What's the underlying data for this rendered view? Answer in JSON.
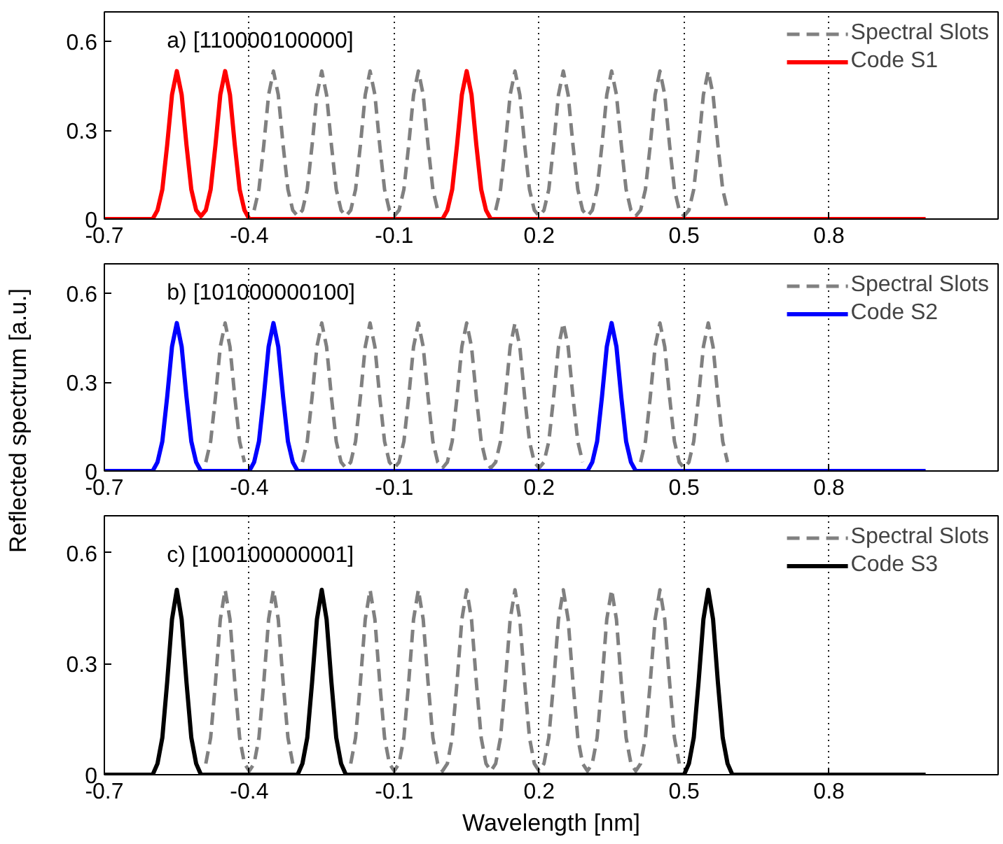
{
  "chart_data": [
    {
      "type": "line",
      "ylabel": null,
      "xlim": [
        -0.7,
        1.15
      ],
      "ylim": [
        0,
        0.7
      ],
      "xticks": [
        -0.7,
        -0.4,
        -0.1,
        0.2,
        0.5,
        0.8
      ],
      "yticks": [
        0,
        0.3,
        0.6
      ],
      "grid": "x",
      "legend": "top right",
      "annotations": [
        "a)   [110000100000]"
      ],
      "series": [
        {
          "name": "Spectral Slots",
          "color": "#808080",
          "line_style": "dashed",
          "x": [
            -0.39,
            -0.38,
            -0.37,
            -0.36,
            -0.35,
            -0.34,
            -0.33,
            -0.32,
            -0.31,
            -0.3,
            -0.29,
            -0.28,
            -0.27,
            -0.26,
            -0.25,
            -0.24,
            -0.23,
            -0.22,
            -0.21,
            -0.2,
            -0.19,
            -0.18,
            -0.17,
            -0.16,
            -0.15,
            -0.14,
            -0.13,
            -0.12,
            -0.11,
            -0.1,
            -0.09,
            -0.08,
            -0.07,
            -0.06,
            -0.05,
            -0.04,
            -0.03,
            -0.02,
            -0.01,
            0.05,
            0.11,
            0.12,
            0.13,
            0.14,
            0.15,
            0.16,
            0.17,
            0.18,
            0.19,
            0.2,
            0.21,
            0.22,
            0.23,
            0.24,
            0.25,
            0.26,
            0.27,
            0.28,
            0.29,
            0.3,
            0.31,
            0.32,
            0.33,
            0.34,
            0.35,
            0.36,
            0.37,
            0.38,
            0.39,
            0.4,
            0.41,
            0.42,
            0.43,
            0.44,
            0.45,
            0.46,
            0.47,
            0.48,
            0.49,
            0.5,
            0.51,
            0.52,
            0.53,
            0.54,
            0.55,
            0.56,
            0.57,
            0.58,
            0.59
          ],
          "values": [
            0.03,
            0.1,
            0.25,
            0.42,
            0.5,
            0.42,
            0.25,
            0.1,
            0.03,
            0.01,
            0.03,
            0.1,
            0.25,
            0.42,
            0.5,
            0.42,
            0.25,
            0.1,
            0.03,
            0.01,
            0.03,
            0.1,
            0.25,
            0.42,
            0.5,
            0.42,
            0.25,
            0.1,
            0.03,
            0.01,
            0.03,
            0.1,
            0.25,
            0.42,
            0.5,
            0.42,
            0.25,
            0.1,
            0.03,
            null,
            0.03,
            0.1,
            0.25,
            0.42,
            0.5,
            0.42,
            0.25,
            0.1,
            0.03,
            0.01,
            0.03,
            0.1,
            0.25,
            0.42,
            0.5,
            0.42,
            0.25,
            0.1,
            0.03,
            0.01,
            0.03,
            0.1,
            0.25,
            0.42,
            0.5,
            0.42,
            0.25,
            0.1,
            0.03,
            0.01,
            0.03,
            0.1,
            0.25,
            0.42,
            0.5,
            0.42,
            0.25,
            0.1,
            0.03,
            0.01,
            0.03,
            0.1,
            0.25,
            0.42,
            0.5,
            0.42,
            0.25,
            0.1,
            0.03
          ]
        },
        {
          "name": "Code S1",
          "color": "#ff0000",
          "line_style": "solid",
          "x": [
            -0.7,
            -0.6,
            -0.59,
            -0.58,
            -0.57,
            -0.56,
            -0.55,
            -0.54,
            -0.53,
            -0.52,
            -0.51,
            -0.5,
            -0.49,
            -0.48,
            -0.47,
            -0.46,
            -0.45,
            -0.44,
            -0.43,
            -0.42,
            -0.41,
            -0.4,
            0.0,
            0.01,
            0.02,
            0.03,
            0.04,
            0.05,
            0.06,
            0.07,
            0.08,
            0.09,
            0.1,
            1.0
          ],
          "values": [
            0,
            0,
            0.03,
            0.1,
            0.25,
            0.42,
            0.5,
            0.42,
            0.25,
            0.1,
            0.03,
            0.01,
            0.03,
            0.1,
            0.25,
            0.42,
            0.5,
            0.42,
            0.25,
            0.1,
            0.03,
            0,
            0,
            0.03,
            0.1,
            0.25,
            0.42,
            0.5,
            0.42,
            0.25,
            0.1,
            0.03,
            0,
            0
          ]
        }
      ]
    },
    {
      "type": "line",
      "ylabel": "Reflected spectrum [a.u.]",
      "xlim": [
        -0.7,
        1.15
      ],
      "ylim": [
        0,
        0.7
      ],
      "xticks": [
        -0.7,
        -0.4,
        -0.1,
        0.2,
        0.5,
        0.8
      ],
      "yticks": [
        0,
        0.3,
        0.6
      ],
      "grid": "x",
      "legend": "top right",
      "annotations": [
        "b)   [101000000100]"
      ],
      "series": [
        {
          "name": "Spectral Slots",
          "color": "#808080",
          "line_style": "dashed",
          "x": [
            -0.49,
            -0.48,
            -0.47,
            -0.46,
            -0.45,
            -0.44,
            -0.43,
            -0.42,
            -0.41,
            -0.35,
            -0.29,
            -0.28,
            -0.27,
            -0.26,
            -0.25,
            -0.24,
            -0.23,
            -0.22,
            -0.21,
            -0.2,
            -0.19,
            -0.18,
            -0.17,
            -0.16,
            -0.15,
            -0.14,
            -0.13,
            -0.12,
            -0.11,
            -0.1,
            -0.09,
            -0.08,
            -0.07,
            -0.06,
            -0.05,
            -0.04,
            -0.03,
            -0.02,
            -0.01,
            0.0,
            0.01,
            0.02,
            0.03,
            0.04,
            0.05,
            0.06,
            0.07,
            0.08,
            0.09,
            0.1,
            0.11,
            0.12,
            0.13,
            0.14,
            0.15,
            0.16,
            0.17,
            0.18,
            0.19,
            0.2,
            0.21,
            0.22,
            0.23,
            0.24,
            0.25,
            0.26,
            0.27,
            0.28,
            0.29,
            0.35,
            0.41,
            0.42,
            0.43,
            0.44,
            0.45,
            0.46,
            0.47,
            0.48,
            0.49,
            0.5,
            0.51,
            0.52,
            0.53,
            0.54,
            0.55,
            0.56,
            0.57,
            0.58,
            0.59
          ],
          "values": [
            0.03,
            0.1,
            0.25,
            0.42,
            0.5,
            0.42,
            0.25,
            0.1,
            0.03,
            null,
            0.03,
            0.1,
            0.25,
            0.42,
            0.5,
            0.42,
            0.25,
            0.1,
            0.03,
            0.01,
            0.03,
            0.1,
            0.25,
            0.42,
            0.5,
            0.42,
            0.25,
            0.1,
            0.03,
            0.01,
            0.03,
            0.1,
            0.25,
            0.42,
            0.5,
            0.42,
            0.25,
            0.1,
            0.03,
            0.01,
            0.03,
            0.1,
            0.25,
            0.42,
            0.5,
            0.42,
            0.25,
            0.1,
            0.03,
            0.01,
            0.03,
            0.1,
            0.25,
            0.42,
            0.5,
            0.42,
            0.25,
            0.1,
            0.03,
            0.01,
            0.03,
            0.1,
            0.25,
            0.42,
            0.5,
            0.42,
            0.25,
            0.1,
            0.03,
            null,
            0.03,
            0.1,
            0.25,
            0.42,
            0.5,
            0.42,
            0.25,
            0.1,
            0.03,
            0.01,
            0.03,
            0.1,
            0.25,
            0.42,
            0.5,
            0.42,
            0.25,
            0.1,
            0.03
          ]
        },
        {
          "name": "Code S2",
          "color": "#0000ff",
          "line_style": "solid",
          "x": [
            -0.7,
            -0.6,
            -0.59,
            -0.58,
            -0.57,
            -0.56,
            -0.55,
            -0.54,
            -0.53,
            -0.52,
            -0.51,
            -0.5,
            -0.4,
            -0.39,
            -0.38,
            -0.37,
            -0.36,
            -0.35,
            -0.34,
            -0.33,
            -0.32,
            -0.31,
            -0.3,
            0.3,
            0.31,
            0.32,
            0.33,
            0.34,
            0.35,
            0.36,
            0.37,
            0.38,
            0.39,
            0.4,
            1.0
          ],
          "values": [
            0,
            0,
            0.03,
            0.1,
            0.25,
            0.42,
            0.5,
            0.42,
            0.25,
            0.1,
            0.03,
            0,
            0,
            0.03,
            0.1,
            0.25,
            0.42,
            0.5,
            0.42,
            0.25,
            0.1,
            0.03,
            0,
            0,
            0.03,
            0.1,
            0.25,
            0.42,
            0.5,
            0.42,
            0.25,
            0.1,
            0.03,
            0,
            0
          ]
        }
      ]
    },
    {
      "type": "line",
      "xlabel": "Wavelength [nm]",
      "xlim": [
        -0.7,
        1.15
      ],
      "ylim": [
        0,
        0.7
      ],
      "xticks": [
        -0.7,
        -0.4,
        -0.1,
        0.2,
        0.5,
        0.8
      ],
      "yticks": [
        0,
        0.3,
        0.6
      ],
      "grid": "x",
      "legend": "top right",
      "annotations": [
        "c)   [100100000001]"
      ],
      "series": [
        {
          "name": "Spectral Slots",
          "color": "#808080",
          "line_style": "dashed",
          "x": [
            -0.49,
            -0.48,
            -0.47,
            -0.46,
            -0.45,
            -0.44,
            -0.43,
            -0.42,
            -0.41,
            -0.4,
            -0.39,
            -0.38,
            -0.37,
            -0.36,
            -0.35,
            -0.34,
            -0.33,
            -0.32,
            -0.31,
            -0.25,
            -0.19,
            -0.18,
            -0.17,
            -0.16,
            -0.15,
            -0.14,
            -0.13,
            -0.12,
            -0.11,
            -0.1,
            -0.09,
            -0.08,
            -0.07,
            -0.06,
            -0.05,
            -0.04,
            -0.03,
            -0.02,
            -0.01,
            0.0,
            0.01,
            0.02,
            0.03,
            0.04,
            0.05,
            0.06,
            0.07,
            0.08,
            0.09,
            0.1,
            0.11,
            0.12,
            0.13,
            0.14,
            0.15,
            0.16,
            0.17,
            0.18,
            0.19,
            0.2,
            0.21,
            0.22,
            0.23,
            0.24,
            0.25,
            0.26,
            0.27,
            0.28,
            0.29,
            0.3,
            0.31,
            0.32,
            0.33,
            0.34,
            0.35,
            0.36,
            0.37,
            0.38,
            0.39,
            0.4,
            0.41,
            0.42,
            0.43,
            0.44,
            0.45,
            0.46,
            0.47,
            0.48,
            0.49
          ],
          "values": [
            0.03,
            0.1,
            0.25,
            0.42,
            0.5,
            0.42,
            0.25,
            0.1,
            0.03,
            0.01,
            0.03,
            0.1,
            0.25,
            0.42,
            0.5,
            0.42,
            0.25,
            0.1,
            0.03,
            null,
            0.03,
            0.1,
            0.25,
            0.42,
            0.5,
            0.42,
            0.25,
            0.1,
            0.03,
            0.01,
            0.03,
            0.1,
            0.25,
            0.42,
            0.5,
            0.42,
            0.25,
            0.1,
            0.03,
            0.01,
            0.03,
            0.1,
            0.25,
            0.42,
            0.5,
            0.42,
            0.25,
            0.1,
            0.03,
            0.01,
            0.03,
            0.1,
            0.25,
            0.42,
            0.5,
            0.42,
            0.25,
            0.1,
            0.03,
            0.01,
            0.03,
            0.1,
            0.25,
            0.42,
            0.5,
            0.42,
            0.25,
            0.1,
            0.03,
            0.01,
            0.03,
            0.1,
            0.25,
            0.42,
            0.5,
            0.42,
            0.25,
            0.1,
            0.03,
            0.01,
            0.03,
            0.1,
            0.25,
            0.42,
            0.5,
            0.42,
            0.25,
            0.1,
            0.03
          ]
        },
        {
          "name": "Code S3",
          "color": "#000000",
          "line_style": "solid",
          "x": [
            -0.7,
            -0.6,
            -0.59,
            -0.58,
            -0.57,
            -0.56,
            -0.55,
            -0.54,
            -0.53,
            -0.52,
            -0.51,
            -0.5,
            -0.3,
            -0.29,
            -0.28,
            -0.27,
            -0.26,
            -0.25,
            -0.24,
            -0.23,
            -0.22,
            -0.21,
            -0.2,
            0.5,
            0.51,
            0.52,
            0.53,
            0.54,
            0.55,
            0.56,
            0.57,
            0.58,
            0.59,
            0.6,
            1.0
          ],
          "values": [
            0,
            0,
            0.03,
            0.1,
            0.25,
            0.42,
            0.5,
            0.42,
            0.25,
            0.1,
            0.03,
            0,
            0,
            0.03,
            0.1,
            0.25,
            0.42,
            0.5,
            0.42,
            0.25,
            0.1,
            0.03,
            0,
            0,
            0.03,
            0.1,
            0.25,
            0.42,
            0.5,
            0.42,
            0.25,
            0.1,
            0.03,
            0,
            0
          ]
        }
      ]
    }
  ]
}
